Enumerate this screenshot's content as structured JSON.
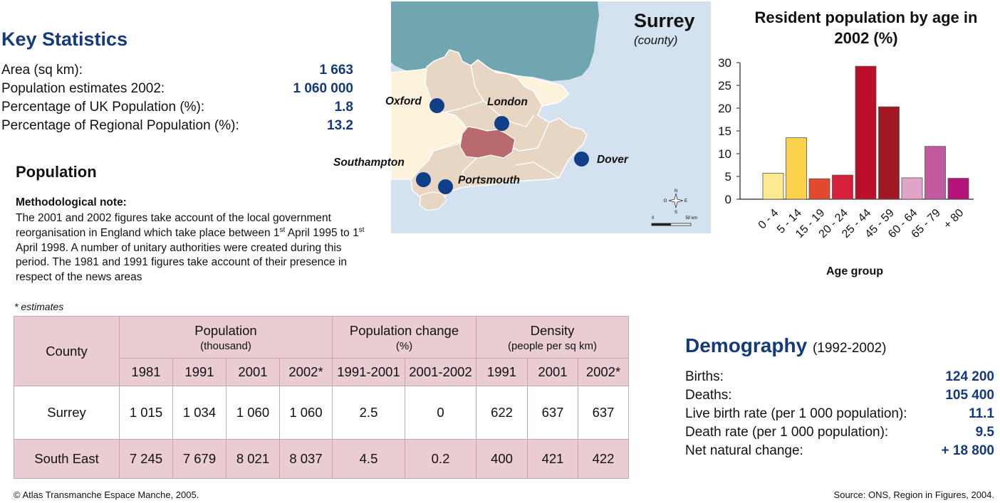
{
  "key_statistics": {
    "title": "Key Statistics",
    "rows": [
      {
        "label": "Area (sq km):",
        "value": "1 663"
      },
      {
        "label": "Population estimates 2002:",
        "value": "1 060 000"
      },
      {
        "label": "Percentage of UK Population (%):",
        "value": "1.8"
      },
      {
        "label": "Percentage of Regional Population (%):",
        "value": "13.2"
      }
    ]
  },
  "population": {
    "title": "Population",
    "method_title": "Methodological note:",
    "method_text": {
      "p1": "The 2001 and 2002 figures take account of the local government reorganisation in England which take place between 1",
      "sup1": "st",
      "p2": " April 1995 to 1",
      "sup2": "st",
      "p3": " April 1998. A number of unitary authorities were created during this period. The 1981 and 1991 figures take account of their presence in respect of the news areas"
    },
    "estimates_note": "* estimates"
  },
  "table": {
    "county_header": "County",
    "groups": [
      {
        "label": "Population",
        "sub": "(thousand)"
      },
      {
        "label": "Population change",
        "sub": "(%)"
      },
      {
        "label": "Density",
        "sub": "(people per sq km)"
      }
    ],
    "columns": [
      "1981",
      "1991",
      "2001",
      "2002*",
      "1991-2001",
      "2001-2002",
      "1991",
      "2001",
      "2002*"
    ],
    "rows": [
      {
        "county": "Surrey",
        "cells": [
          "1 015",
          "1 034",
          "1 060",
          "1 060",
          "2.5",
          "0",
          "622",
          "637",
          "637"
        ]
      },
      {
        "county": "South East",
        "cells": [
          "7 245",
          "7 679",
          "8 021",
          "8 037",
          "4.5",
          "0.2",
          "400",
          "421",
          "422"
        ]
      }
    ]
  },
  "map": {
    "title": "Surrey",
    "subtitle": "(county)",
    "cities": [
      "Oxford",
      "London",
      "Southampton",
      "Portsmouth",
      "Dover"
    ],
    "compass": {
      "n": "N",
      "s": "S",
      "e": "E",
      "o": "O"
    },
    "scale": {
      "start": "0",
      "end": "50 km"
    },
    "colors": {
      "sea": "#d4e2ef",
      "channel_land": "#6fa6b0",
      "region": "#e6d6c3",
      "outside": "#fdf2dc",
      "surrey": "#b86a6e",
      "city": "#0f3f86"
    }
  },
  "chart_data": {
    "type": "bar",
    "title": "Resident population by age in 2002 (%)",
    "xlabel": "Age group",
    "ylabel": "",
    "categories": [
      "0 - 4",
      "5 - 14",
      "15 - 19",
      "20 - 24",
      "25 - 44",
      "45 - 59",
      "60 - 64",
      "65 - 79",
      "+ 80"
    ],
    "values": [
      5.7,
      13.5,
      4.5,
      5.3,
      29.2,
      20.3,
      4.7,
      11.6,
      4.6
    ],
    "colors": [
      "#fde98f",
      "#fbd24c",
      "#e2492e",
      "#d81f3a",
      "#bb0e2a",
      "#a11823",
      "#e1a4c8",
      "#c15a9e",
      "#b5157a"
    ],
    "ylim": [
      0,
      30
    ],
    "yticks": [
      0,
      5,
      10,
      15,
      20,
      25,
      30
    ],
    "grid": false
  },
  "demography": {
    "title": "Demography",
    "period": "(1992-2002)",
    "rows": [
      {
        "label": "Births:",
        "value": "124 200"
      },
      {
        "label": "Deaths:",
        "value": "105 400"
      },
      {
        "label": "Live birth rate (per 1 000 population):",
        "value": "11.1"
      },
      {
        "label": "Death rate (per 1 000 population):",
        "value": "9.5"
      },
      {
        "label": "Net natural change:",
        "value": "+ 18 800"
      }
    ]
  },
  "footer": {
    "copyright": "© Atlas Transmanche Espace Manche, 2005.",
    "source": "Source: ONS, Region in Figures, 2004."
  }
}
